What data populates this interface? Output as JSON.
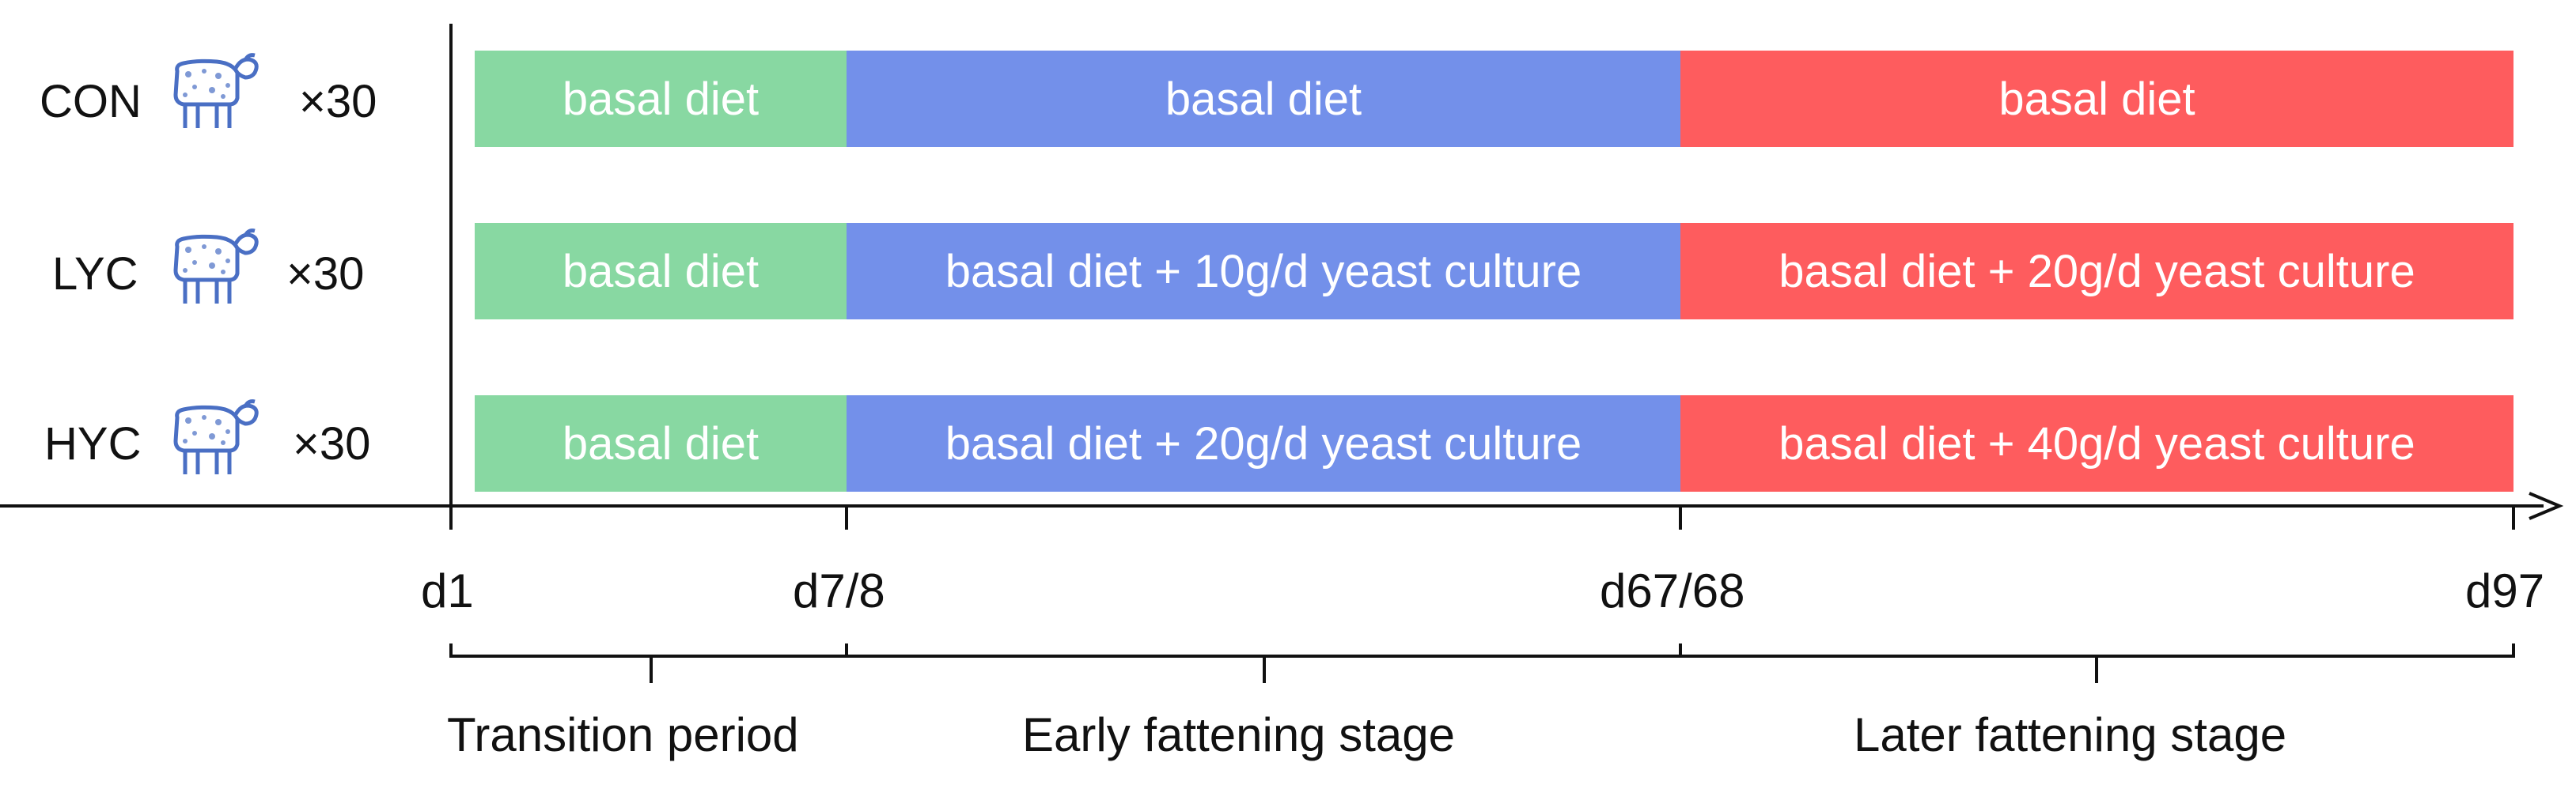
{
  "diagram": {
    "groups": [
      {
        "name": "CON",
        "count": "×30",
        "segments": [
          "basal diet",
          "basal diet",
          "basal diet"
        ]
      },
      {
        "name": "LYC",
        "count": "×30",
        "segments": [
          "basal diet",
          "basal diet + 10g/d yeast culture",
          "basal diet + 20g/d yeast culture"
        ]
      },
      {
        "name": "HYC",
        "count": "×30",
        "segments": [
          "basal diet",
          "basal diet + 20g/d yeast culture",
          "basal diet + 40g/d yeast culture"
        ]
      }
    ],
    "timeline": {
      "ticks": [
        "d1",
        "d7/8",
        "d67/68",
        "d97"
      ],
      "periods": [
        "Transition period",
        "Early fattening stage",
        "Later fattening stage"
      ]
    },
    "colors": {
      "transition": "#88d8a2",
      "early": "#7390ea",
      "later": "#fe5c5e",
      "sheep": "#4a6fc4",
      "axis": "#111111"
    },
    "icons": [
      "sheep-icon"
    ]
  }
}
